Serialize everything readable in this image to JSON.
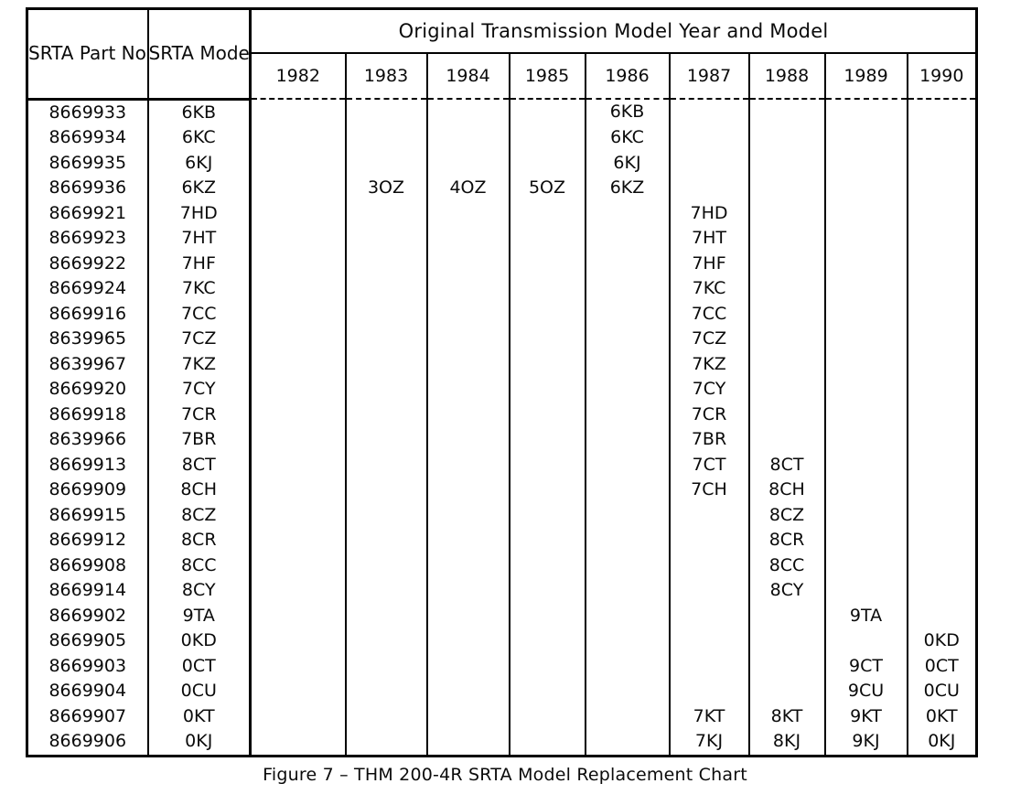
{
  "page": {
    "caption": "Figure 7 – THM 200-4R SRTA Model Replacement Chart",
    "background_color": "#ffffff",
    "text_color": "#0b0b0b",
    "border_color": "#000000"
  },
  "table": {
    "year_group_header": "Original Transmission Model Year and Model",
    "part_header": "SRTA\nPart No.",
    "model_header": "SRTA\nModel",
    "years": [
      "1982",
      "1983",
      "1984",
      "1985",
      "1986",
      "1987",
      "1988",
      "1989",
      "1990"
    ],
    "rows": [
      {
        "part_no": "8669933",
        "model": "6KB",
        "years": {
          "1986": "6KB"
        }
      },
      {
        "part_no": "8669934",
        "model": "6KC",
        "years": {
          "1986": "6KC"
        }
      },
      {
        "part_no": "8669935",
        "model": "6KJ",
        "years": {
          "1986": "6KJ"
        }
      },
      {
        "part_no": "8669936",
        "model": "6KZ",
        "years": {
          "1983": "3OZ",
          "1984": "4OZ",
          "1985": "5OZ",
          "1986": "6KZ"
        }
      },
      {
        "part_no": "8669921",
        "model": "7HD",
        "years": {
          "1987": "7HD"
        }
      },
      {
        "part_no": "8669923",
        "model": "7HT",
        "years": {
          "1987": "7HT"
        }
      },
      {
        "part_no": "8669922",
        "model": "7HF",
        "years": {
          "1987": "7HF"
        }
      },
      {
        "part_no": "8669924",
        "model": "7KC",
        "years": {
          "1987": "7KC"
        }
      },
      {
        "part_no": "8669916",
        "model": "7CC",
        "years": {
          "1987": "7CC"
        }
      },
      {
        "part_no": "8639965",
        "model": "7CZ",
        "years": {
          "1987": "7CZ"
        }
      },
      {
        "part_no": "8639967",
        "model": "7KZ",
        "years": {
          "1987": "7KZ"
        }
      },
      {
        "part_no": "8669920",
        "model": "7CY",
        "years": {
          "1987": "7CY"
        }
      },
      {
        "part_no": "8669918",
        "model": "7CR",
        "years": {
          "1987": "7CR"
        }
      },
      {
        "part_no": "8639966",
        "model": "7BR",
        "years": {
          "1987": "7BR"
        }
      },
      {
        "part_no": "8669913",
        "model": "8CT",
        "years": {
          "1987": "7CT",
          "1988": "8CT"
        }
      },
      {
        "part_no": "8669909",
        "model": "8CH",
        "years": {
          "1987": "7CH",
          "1988": "8CH"
        }
      },
      {
        "part_no": "8669915",
        "model": "8CZ",
        "years": {
          "1988": "8CZ"
        }
      },
      {
        "part_no": "8669912",
        "model": "8CR",
        "years": {
          "1988": "8CR"
        }
      },
      {
        "part_no": "8669908",
        "model": "8CC",
        "years": {
          "1988": "8CC"
        }
      },
      {
        "part_no": "8669914",
        "model": "8CY",
        "years": {
          "1988": "8CY"
        }
      },
      {
        "part_no": "8669902",
        "model": "9TA",
        "years": {
          "1989": "9TA"
        }
      },
      {
        "part_no": "8669905",
        "model": "0KD",
        "years": {
          "1990": "0KD"
        }
      },
      {
        "part_no": "8669903",
        "model": "0CT",
        "years": {
          "1989": "9CT",
          "1990": "0CT"
        }
      },
      {
        "part_no": "8669904",
        "model": "0CU",
        "years": {
          "1989": "9CU",
          "1990": "0CU"
        }
      },
      {
        "part_no": "8669907",
        "model": "0KT",
        "years": {
          "1987": "7KT",
          "1988": "8KT",
          "1989": "9KT",
          "1990": "0KT"
        }
      },
      {
        "part_no": "8669906",
        "model": "0KJ",
        "years": {
          "1987": "7KJ",
          "1988": "8KJ",
          "1989": "9KJ",
          "1990": "0KJ"
        }
      }
    ]
  }
}
